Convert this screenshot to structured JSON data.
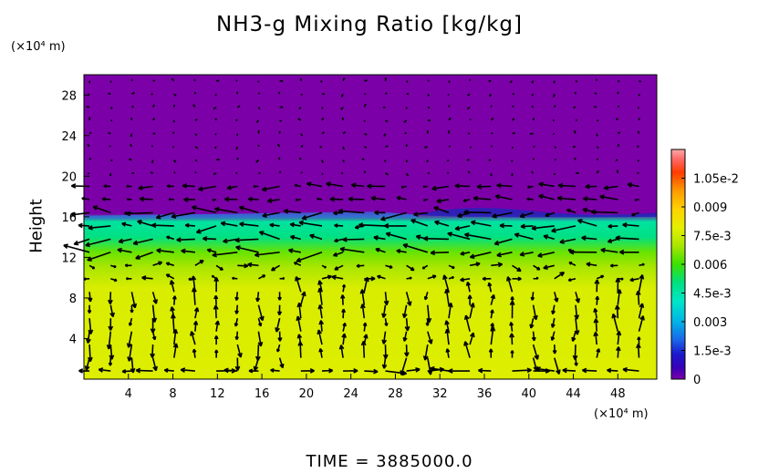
{
  "chart_data": {
    "type": "heatmap",
    "title": "NH3-g Mixing Ratio [kg/kg]",
    "ylabel": "Height",
    "x_unit": "(×10⁴ m)",
    "y_unit": "(×10⁴ m)",
    "x_ticks": [
      4,
      8,
      12,
      16,
      20,
      24,
      28,
      32,
      36,
      40,
      44,
      48
    ],
    "y_ticks": [
      4,
      8,
      12,
      16,
      20,
      24,
      28
    ],
    "xlim": [
      0,
      51.5
    ],
    "ylim": [
      0,
      30
    ],
    "colorbar": {
      "ticks": [
        "1.05e-2",
        "0.009",
        "7.5e-3",
        "0.006",
        "4.5e-3",
        "0.003",
        "1.5e-3",
        "0"
      ],
      "tick_values": [
        0.0105,
        0.009,
        0.0075,
        0.006,
        0.0045,
        0.003,
        0.0015,
        0
      ],
      "range": [
        0,
        0.012
      ]
    },
    "field_profile": [
      {
        "height": 0,
        "value": 0.0078
      },
      {
        "height": 9,
        "value": 0.0077
      },
      {
        "height": 11,
        "value": 0.007
      },
      {
        "height": 12.5,
        "value": 0.0064
      },
      {
        "height": 14,
        "value": 0.005
      },
      {
        "height": 15.5,
        "value": 0.0046
      },
      {
        "height": 16.3,
        "value": 0.0
      },
      {
        "height": 30,
        "value": 0.0
      }
    ],
    "footer": "TIME = 3885000.0"
  }
}
